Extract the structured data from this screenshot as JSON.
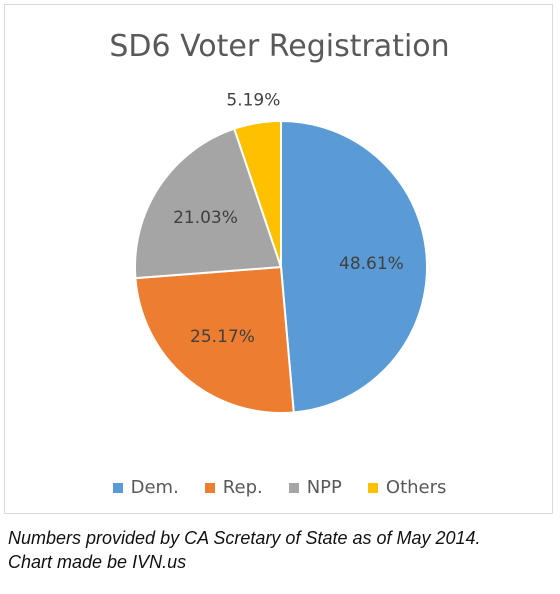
{
  "chart_data": {
    "type": "pie",
    "title": "SD6 Voter Registration",
    "categories": [
      "Dem.",
      "Rep.",
      "NPP",
      "Others"
    ],
    "values": [
      48.61,
      25.17,
      21.03,
      5.19
    ],
    "labels": [
      "48.61%",
      "25.17%",
      "21.03%",
      "5.19%"
    ],
    "colors": [
      "#5b9bd5",
      "#ed7d31",
      "#a5a5a5",
      "#ffc000"
    ],
    "legend_position": "bottom",
    "start_angle_deg": 0,
    "direction": "clockwise"
  },
  "caption": {
    "line1": "Numbers provided by CA Scretary of State as of May 2014.",
    "line2": "Chart made be IVN.us"
  }
}
